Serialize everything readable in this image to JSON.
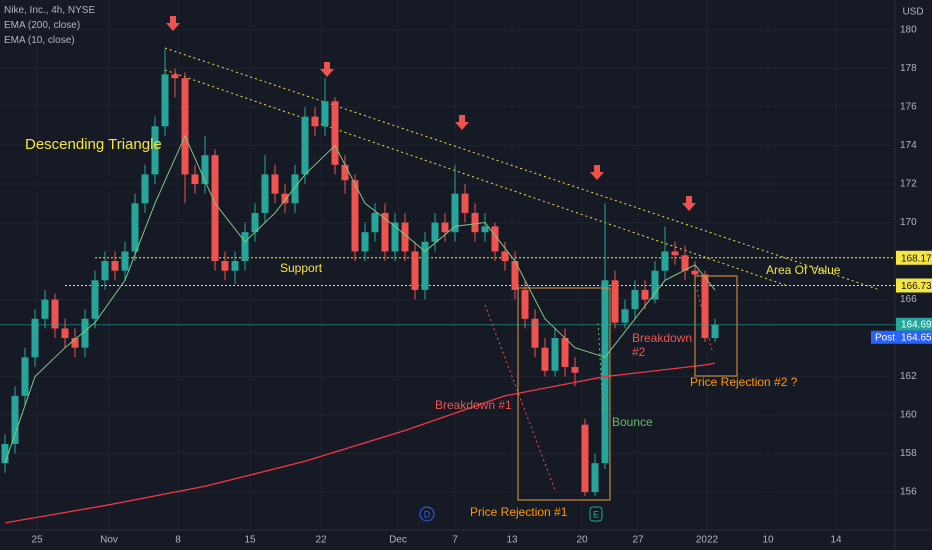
{
  "chart_data": {
    "type": "candlestick",
    "title": "Nike, Inc., 4h, NYSE",
    "currency": "USD",
    "xlim": [
      0,
      89.5
    ],
    "xticks": [
      {
        "value": 3.7,
        "label": "25"
      },
      {
        "value": 10.9,
        "label": "Nov"
      },
      {
        "value": 17.8,
        "label": "8"
      },
      {
        "value": 25,
        "label": "15"
      },
      {
        "value": 32.1,
        "label": "22"
      },
      {
        "value": 39.8,
        "label": "Dec"
      },
      {
        "value": 45.5,
        "label": "7"
      },
      {
        "value": 51.2,
        "label": "13"
      },
      {
        "value": 58.2,
        "label": "20"
      },
      {
        "value": 63.8,
        "label": "27"
      },
      {
        "value": 70.7,
        "label": "2022"
      },
      {
        "value": 76.8,
        "label": "10"
      },
      {
        "value": 83.6,
        "label": "14"
      }
    ],
    "ylim": [
      154.03,
      181.56
    ],
    "yticks": [
      156,
      158,
      160,
      162,
      166,
      170,
      172,
      174,
      176,
      178,
      180
    ],
    "up_color": "#26a69a",
    "down_color": "#ef5350",
    "open": [
      157.5,
      158.5,
      161,
      163,
      165,
      166,
      164.5,
      164,
      163.5,
      165,
      167,
      168,
      167.5,
      168.5,
      171,
      172.5,
      175,
      177.7,
      177.5,
      172.5,
      172,
      173.5,
      168,
      167.5,
      168,
      169.5,
      170.5,
      172.5,
      171.5,
      171,
      172.5,
      175.5,
      175,
      176.3,
      173,
      172.2,
      168.5,
      169.5,
      170.5,
      168.5,
      170,
      168.5,
      166.5,
      169,
      170,
      169.5,
      171.5,
      170.5,
      169.5,
      169.8,
      168.5,
      168,
      166.5,
      165,
      163.5,
      162.3,
      164,
      162.5,
      159.5,
      156,
      157.5,
      167,
      164.8,
      165.5,
      166.5,
      166,
      167.5,
      168.5,
      168.3,
      167.5,
      167.3,
      164
    ],
    "high": [
      159,
      161.5,
      163.5,
      165.5,
      166.5,
      166.3,
      165,
      164.5,
      165.5,
      167.5,
      168.5,
      168.5,
      169,
      171.5,
      173,
      175.5,
      179,
      178,
      177.8,
      173,
      174.5,
      173.8,
      168.5,
      168.5,
      170,
      171,
      173.5,
      173,
      172,
      173,
      176,
      176,
      177.5,
      176.5,
      173.5,
      172.5,
      170,
      171,
      171,
      170.5,
      170.5,
      169,
      169.5,
      170.5,
      170.5,
      173,
      172,
      171,
      170.5,
      170,
      169,
      168.5,
      167,
      165.5,
      164,
      164.5,
      164.5,
      163,
      159.8,
      158,
      171,
      167.5,
      166,
      167,
      167,
      168,
      169.8,
      169,
      168.8,
      168,
      167.5,
      165
    ],
    "low": [
      157,
      158,
      160.5,
      162.5,
      164.5,
      164,
      163.5,
      163,
      163,
      164.5,
      166.5,
      167,
      167,
      168,
      170.5,
      172,
      174.5,
      176.5,
      171,
      171.5,
      171.5,
      167.5,
      167,
      166.8,
      167.5,
      169,
      170,
      171,
      170.5,
      170.5,
      172,
      174.5,
      174.5,
      172.5,
      171.5,
      168,
      168,
      169,
      168,
      168,
      168,
      166,
      166,
      168.5,
      169,
      169,
      170,
      169,
      169,
      168,
      167.5,
      166,
      164.5,
      163,
      162,
      162,
      162,
      161.5,
      155.8,
      155.8,
      157.2,
      164.5,
      164.5,
      165,
      165.5,
      165.8,
      167,
      167.8,
      167,
      166.8,
      163.8,
      163.8
    ],
    "close": [
      158.5,
      161,
      163,
      165,
      166,
      164.5,
      164,
      163.5,
      165,
      167,
      168,
      167.5,
      168.5,
      171,
      172.5,
      175,
      177.7,
      177.5,
      172.5,
      172,
      173.5,
      168,
      167.5,
      168,
      169.5,
      170.5,
      172.5,
      171.5,
      171,
      172.5,
      175.5,
      175,
      176.3,
      173,
      172.2,
      168.5,
      169.5,
      170.5,
      168.5,
      170,
      168.5,
      166.5,
      169,
      170,
      169.5,
      171.5,
      170.5,
      169.5,
      169.8,
      168.5,
      168,
      166.5,
      165,
      163.5,
      162.3,
      164,
      162.5,
      162.2,
      156,
      157.5,
      167,
      164.8,
      165.5,
      166.5,
      166,
      167.5,
      168.5,
      168.3,
      167.5,
      167.3,
      164,
      164.7
    ],
    "series": [
      {
        "name": "EMA (200, close)",
        "color": "#f23645",
        "x": [
          0.5,
          10.5,
          20.5,
          30.5,
          40.5,
          50.5,
          60.5,
          70.5,
          71.5
        ],
        "values": [
          154.4,
          155.3,
          156.3,
          157.6,
          159.2,
          161,
          162,
          162.6,
          162.7
        ]
      },
      {
        "name": "EMA (10, close)",
        "color": "#81c784",
        "x": [
          0.5,
          3.5,
          6.5,
          9.5,
          12.5,
          15.5,
          18.5,
          21.5,
          24.5,
          27.5,
          30.5,
          33.5,
          36.5,
          39.5,
          42.5,
          45.5,
          48.5,
          51.5,
          54.5,
          57.5,
          60.5,
          63.5,
          66.5,
          69.5,
          71.5
        ],
        "values": [
          157.5,
          162,
          163.5,
          164.8,
          167,
          171,
          174.5,
          171,
          169,
          170.5,
          172.5,
          174,
          171,
          169.8,
          168.5,
          169.8,
          170,
          168,
          165,
          163.5,
          163,
          165,
          167,
          167.8,
          166.5
        ]
      }
    ],
    "levels": [
      {
        "value": 168.17,
        "color": "#f5e642"
      },
      {
        "value": 166.73,
        "color": "#f5e642"
      }
    ],
    "last_price": {
      "value": 164.69,
      "color": "#26a69a"
    },
    "post_price": {
      "label": "Post",
      "value": 164.65,
      "color": "#2962ff"
    },
    "annotations": [
      "Descending Triangle",
      "Support",
      "Area Of Value",
      "Breakdown #1",
      "Breakdown #2",
      "Bounce",
      "Price Rejection #1",
      "Price Rejection #2 ?"
    ]
  }
}
